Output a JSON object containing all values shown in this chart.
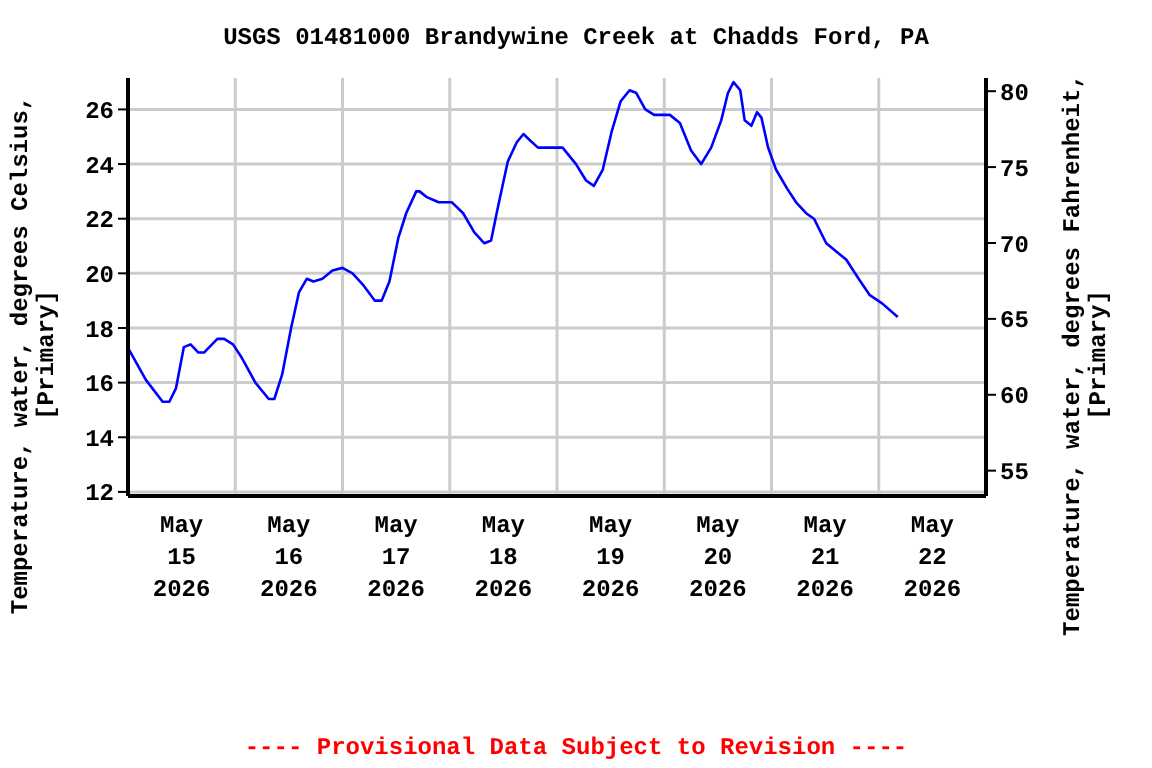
{
  "chart_data": {
    "type": "line",
    "title": "USGS 01481000 Brandywine Creek at Chadds Ford, PA",
    "ylabel": "Temperature, water, degrees Celsius,\n[Primary]",
    "y2label": "Temperature, water, degrees Fahrenheit,\n[Primary]",
    "annotations": [
      "---- Provisional Data Subject to Revision ----"
    ],
    "x": [
      "2026-05-15T00:15",
      "2026-05-15T04:00",
      "2026-05-15T07:45",
      "2026-05-15T09:15",
      "2026-05-15T10:45",
      "2026-05-15T12:30",
      "2026-05-15T14:00",
      "2026-05-15T15:45",
      "2026-05-15T17:00",
      "2026-05-15T20:00",
      "2026-05-15T21:30",
      "2026-05-15T23:30",
      "2026-05-16T01:30",
      "2026-05-16T04:30",
      "2026-05-16T07:30",
      "2026-05-16T08:45",
      "2026-05-16T10:30",
      "2026-05-16T12:30",
      "2026-05-16T14:15",
      "2026-05-16T16:00",
      "2026-05-16T17:30",
      "2026-05-16T19:30",
      "2026-05-16T21:45",
      "2026-05-17T00:00",
      "2026-05-17T02:15",
      "2026-05-17T04:30",
      "2026-05-17T07:15",
      "2026-05-17T08:45",
      "2026-05-17T10:30",
      "2026-05-17T12:30",
      "2026-05-17T14:15",
      "2026-05-17T16:30",
      "2026-05-17T17:15",
      "2026-05-17T18:45",
      "2026-05-17T21:30",
      "2026-05-18T00:30",
      "2026-05-18T03:00",
      "2026-05-18T05:30",
      "2026-05-18T07:45",
      "2026-05-18T09:15",
      "2026-05-18T10:45",
      "2026-05-18T13:00",
      "2026-05-18T15:00",
      "2026-05-18T16:30",
      "2026-05-18T17:45",
      "2026-05-18T19:45",
      "2026-05-18T23:45",
      "2026-05-19T01:15",
      "2026-05-19T04:15",
      "2026-05-19T06:30",
      "2026-05-19T08:15",
      "2026-05-19T10:15",
      "2026-05-19T12:15",
      "2026-05-19T14:15",
      "2026-05-19T16:15",
      "2026-05-19T17:45",
      "2026-05-19T19:45",
      "2026-05-19T21:45",
      "2026-05-20T01:15",
      "2026-05-20T03:30",
      "2026-05-20T06:00",
      "2026-05-20T08:15",
      "2026-05-20T10:30",
      "2026-05-20T12:45",
      "2026-05-20T14:15",
      "2026-05-20T15:30",
      "2026-05-20T17:00",
      "2026-05-20T18:00",
      "2026-05-20T19:30",
      "2026-05-20T20:45",
      "2026-05-20T21:45",
      "2026-05-20T23:15",
      "2026-05-21T01:00",
      "2026-05-21T03:30",
      "2026-05-21T05:30",
      "2026-05-21T07:45",
      "2026-05-21T09:30",
      "2026-05-21T12:15",
      "2026-05-21T14:30",
      "2026-05-21T16:45",
      "2026-05-21T19:30",
      "2026-05-21T22:00",
      "2026-05-22T00:45",
      "2026-05-22T04:15"
    ],
    "series": [
      {
        "color": "#0000ff",
        "values": [
          17.2,
          16.1,
          15.3,
          15.3,
          15.8,
          17.3,
          17.4,
          17.1,
          17.1,
          17.6,
          17.6,
          17.4,
          16.9,
          16.0,
          15.4,
          15.4,
          16.3,
          18.0,
          19.3,
          19.8,
          19.7,
          19.8,
          20.1,
          20.2,
          20.0,
          19.6,
          19.0,
          19.0,
          19.7,
          21.3,
          22.2,
          23.0,
          23.0,
          22.8,
          22.6,
          22.6,
          22.2,
          21.5,
          21.1,
          21.2,
          22.4,
          24.1,
          24.8,
          25.1,
          24.9,
          24.6,
          24.6,
          24.6,
          24.0,
          23.4,
          23.2,
          23.8,
          25.2,
          26.3,
          26.7,
          26.6,
          26.0,
          25.8,
          25.8,
          25.5,
          24.5,
          24.0,
          24.6,
          25.6,
          26.6,
          27.0,
          26.7,
          25.6,
          25.4,
          25.9,
          25.7,
          24.6,
          23.8,
          23.1,
          22.6,
          22.2,
          22.0,
          21.1,
          20.8,
          20.5,
          19.8,
          19.2,
          18.9,
          18.4
        ]
      }
    ],
    "xlim": [
      "2026-05-15T00:00",
      "2026-05-23T00:00"
    ],
    "xticks": [
      {
        "value": "2026-05-15T00:00",
        "label": null
      },
      {
        "value": "2026-05-15T12:00",
        "label": "May\n15\n2026"
      },
      {
        "value": "2026-05-16T00:00",
        "label": null
      },
      {
        "value": "2026-05-16T12:00",
        "label": "May\n16\n2026"
      },
      {
        "value": "2026-05-17T00:00",
        "label": null
      },
      {
        "value": "2026-05-17T12:00",
        "label": "May\n17\n2026"
      },
      {
        "value": "2026-05-18T00:00",
        "label": null
      },
      {
        "value": "2026-05-18T12:00",
        "label": "May\n18\n2026"
      },
      {
        "value": "2026-05-19T00:00",
        "label": null
      },
      {
        "value": "2026-05-19T12:00",
        "label": "May\n19\n2026"
      },
      {
        "value": "2026-05-20T00:00",
        "label": null
      },
      {
        "value": "2026-05-20T12:00",
        "label": "May\n20\n2026"
      },
      {
        "value": "2026-05-21T00:00",
        "label": null
      },
      {
        "value": "2026-05-21T12:00",
        "label": "May\n21\n2026"
      },
      {
        "value": "2026-05-22T00:00",
        "label": null
      },
      {
        "value": "2026-05-22T12:00",
        "label": "May\n22\n2026"
      },
      {
        "value": "2026-05-23T00:00",
        "label": null
      }
    ],
    "ylim": [
      11.85,
      27.15
    ],
    "yticks": [
      12,
      14,
      16,
      18,
      20,
      22,
      24,
      26
    ],
    "y2lim": [
      53.33,
      80.87
    ],
    "y2ticks": [
      55,
      60,
      65,
      70,
      75,
      80
    ],
    "grid": true,
    "line_style": "solid",
    "marker": "none"
  }
}
